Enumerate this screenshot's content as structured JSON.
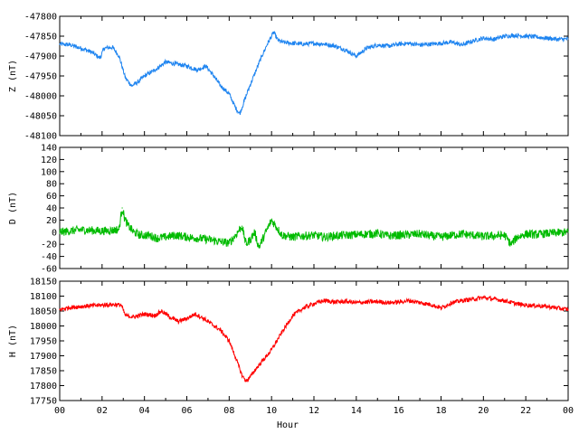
{
  "chart_data": [
    {
      "type": "line",
      "ylabel": "Z (nT)",
      "ylim": [
        -48100,
        -47800
      ],
      "yticks": [
        -47800,
        -47850,
        -47900,
        -47950,
        -48000,
        -48050,
        -48100
      ],
      "color": "#1e84f0",
      "x_range_hours": [
        0,
        24
      ],
      "series": [
        {
          "x": [
            0,
            0.5,
            1,
            1.5,
            1.9,
            2.1,
            2.5,
            2.8,
            3.1,
            3.4,
            3.7,
            4.0,
            4.5,
            5.0,
            5.5,
            6.0,
            6.5,
            6.9,
            7.2,
            7.6,
            8.0,
            8.3,
            8.5,
            8.7,
            8.9,
            9.2,
            9.5,
            9.8,
            10.1,
            10.3,
            10.5,
            11,
            11.5,
            12,
            12.5,
            13,
            13.5,
            14,
            14.5,
            15,
            15.5,
            16,
            16.5,
            17,
            17.5,
            18,
            18.5,
            19,
            19.5,
            20,
            20.5,
            21,
            21.5,
            22,
            22.5,
            23,
            23.5,
            24
          ],
          "y": [
            -47870,
            -47872,
            -47880,
            -47890,
            -47905,
            -47880,
            -47878,
            -47900,
            -47955,
            -47975,
            -47965,
            -47950,
            -47935,
            -47915,
            -47920,
            -47925,
            -47935,
            -47925,
            -47945,
            -47975,
            -47995,
            -48030,
            -48045,
            -48015,
            -47985,
            -47945,
            -47905,
            -47870,
            -47840,
            -47860,
            -47865,
            -47868,
            -47870,
            -47868,
            -47870,
            -47875,
            -47885,
            -47900,
            -47880,
            -47872,
            -47875,
            -47870,
            -47868,
            -47872,
            -47870,
            -47868,
            -47865,
            -47872,
            -47862,
            -47855,
            -47858,
            -47850,
            -47848,
            -47850,
            -47852,
            -47855,
            -47858,
            -47857
          ]
        }
      ]
    },
    {
      "type": "line",
      "ylabel": "D (nT)",
      "ylim": [
        -60,
        140
      ],
      "yticks": [
        140,
        120,
        100,
        80,
        60,
        40,
        20,
        0,
        -20,
        -40,
        -60
      ],
      "color": "#00bb00",
      "x_range_hours": [
        0,
        24
      ],
      "series": [
        {
          "x": [
            0,
            0.5,
            1,
            1.5,
            2,
            2.5,
            2.8,
            2.95,
            3.05,
            3.2,
            3.5,
            3.8,
            4.2,
            4.6,
            5.0,
            5.5,
            6.0,
            6.5,
            7.0,
            7.5,
            8.0,
            8.3,
            8.6,
            8.8,
            9.0,
            9.2,
            9.4,
            9.6,
            9.8,
            10.0,
            10.2,
            10.5,
            11,
            11.5,
            12,
            12.5,
            13,
            13.5,
            14,
            14.5,
            15,
            15.5,
            16,
            16.5,
            17,
            17.5,
            18,
            18.5,
            19,
            19.5,
            20,
            20.5,
            21,
            21.3,
            21.6,
            22,
            22.5,
            23,
            23.5,
            24
          ],
          "y": [
            0,
            2,
            4,
            3,
            2,
            3,
            5,
            40,
            25,
            12,
            0,
            -5,
            -5,
            -10,
            -8,
            -5,
            -8,
            -10,
            -12,
            -15,
            -18,
            -5,
            10,
            -20,
            -12,
            0,
            -25,
            -10,
            5,
            20,
            10,
            -5,
            -8,
            -6,
            -5,
            -8,
            -6,
            -5,
            -4,
            -3,
            -2,
            -6,
            -5,
            -4,
            -3,
            -6,
            -8,
            -5,
            -3,
            -5,
            -7,
            -6,
            -5,
            -20,
            -8,
            -3,
            -4,
            -2,
            -1,
            0
          ]
        }
      ]
    },
    {
      "type": "line",
      "ylabel": "H (nT)",
      "xlabel": "Hour",
      "ylim": [
        17750,
        18150
      ],
      "yticks": [
        18150,
        18100,
        18050,
        18000,
        17950,
        17900,
        17850,
        17800,
        17750
      ],
      "xticks": [
        "00",
        "02",
        "04",
        "06",
        "08",
        "10",
        "12",
        "14",
        "16",
        "18",
        "20",
        "22",
        "00"
      ],
      "color": "#ff0000",
      "x_range_hours": [
        0,
        24
      ],
      "series": [
        {
          "x": [
            0,
            0.5,
            1,
            1.5,
            2,
            2.5,
            2.9,
            3.1,
            3.5,
            4.0,
            4.5,
            4.8,
            5.2,
            5.6,
            6.0,
            6.4,
            6.8,
            7.2,
            7.6,
            8.0,
            8.3,
            8.6,
            8.8,
            9.0,
            9.3,
            9.6,
            10.0,
            10.5,
            11.0,
            11.5,
            12,
            12.5,
            13,
            13.5,
            14,
            14.5,
            15,
            15.5,
            16,
            16.5,
            17,
            17.5,
            18,
            18.5,
            19,
            19.5,
            20,
            20.5,
            21,
            21.5,
            22,
            22.5,
            23,
            23.5,
            24
          ],
          "y": [
            18055,
            18062,
            18065,
            18068,
            18070,
            18072,
            18070,
            18035,
            18030,
            18040,
            18035,
            18050,
            18030,
            18015,
            18025,
            18040,
            18025,
            18005,
            17985,
            17950,
            17895,
            17835,
            17815,
            17830,
            17860,
            17885,
            17920,
            17980,
            18035,
            18060,
            18075,
            18085,
            18080,
            18082,
            18078,
            18080,
            18082,
            18078,
            18080,
            18085,
            18078,
            18072,
            18060,
            18078,
            18085,
            18090,
            18095,
            18090,
            18085,
            18075,
            18070,
            18068,
            18065,
            18060,
            18055
          ]
        }
      ]
    }
  ]
}
